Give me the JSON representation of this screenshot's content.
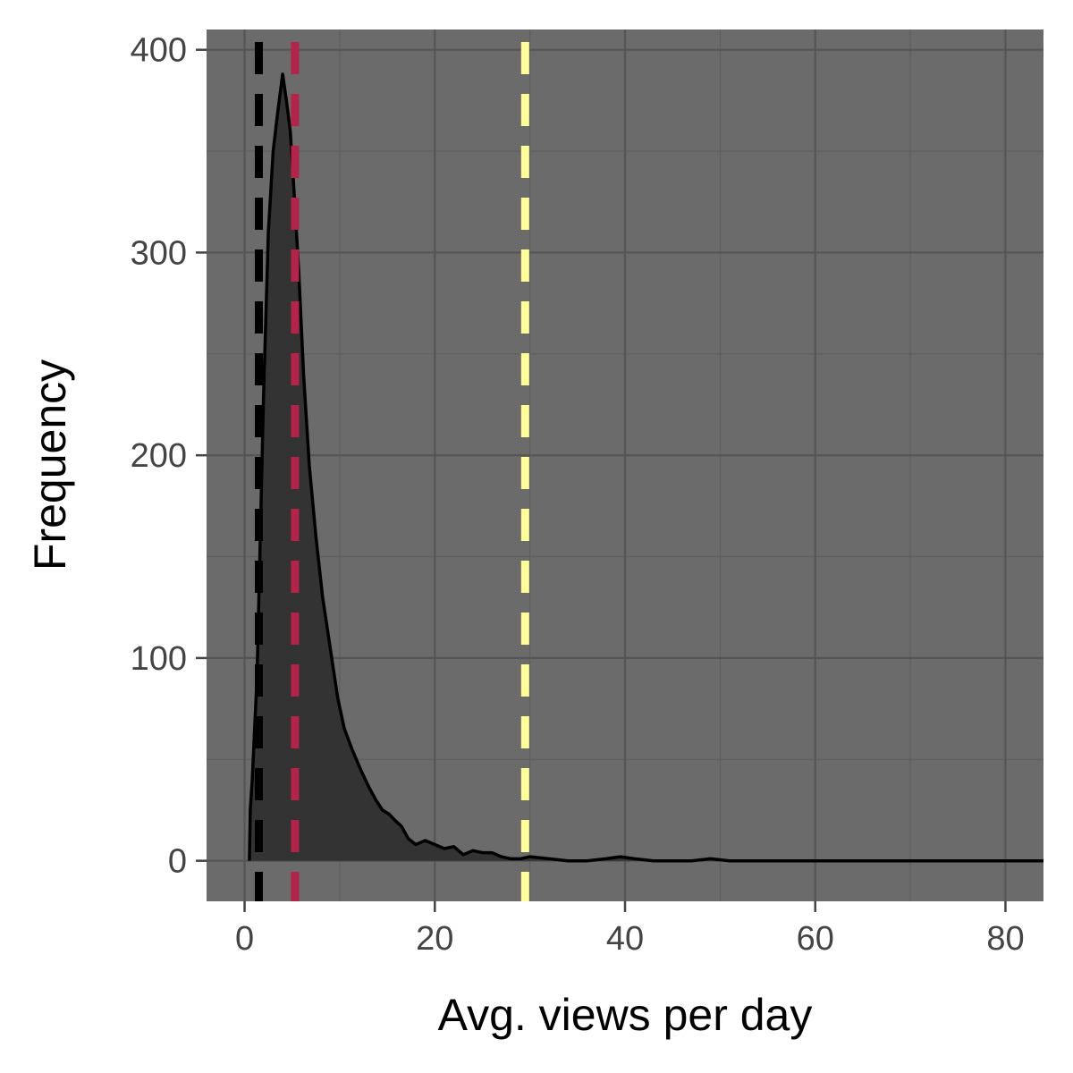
{
  "chart_data": {
    "type": "area",
    "xlabel": "Avg. views per day",
    "ylabel": "Frequency",
    "xlim": [
      -4,
      84
    ],
    "ylim": [
      -20,
      410
    ],
    "x_ticks": [
      0,
      20,
      40,
      60,
      80
    ],
    "y_ticks": [
      0,
      100,
      200,
      300,
      400
    ],
    "x_tick_labels": [
      "0",
      "20",
      "40",
      "60",
      "80"
    ],
    "y_tick_labels": [
      "0",
      "100",
      "200",
      "300",
      "400"
    ],
    "x_minor": [
      10,
      30,
      50,
      70
    ],
    "y_minor": [
      50,
      150,
      250,
      350
    ],
    "grid": true,
    "legend": "none",
    "colors": {
      "panel": "#6b6b6b",
      "grid_major": "#555555",
      "grid_minor": "#5e5e5e",
      "fill": "#333333",
      "outline": "#000000",
      "ticks": "#444444"
    },
    "series": [
      {
        "x": [
          0.5,
          0.6,
          0.8,
          1.0,
          1.3,
          1.6,
          2.0,
          2.5,
          3.0,
          3.5,
          4.0,
          4.4,
          4.8,
          5.2,
          5.7,
          6.2,
          6.8,
          7.5,
          8.2,
          9.0,
          9.8,
          10.5,
          11.3,
          12.2,
          13.0,
          13.8,
          14.5,
          15.2,
          15.8,
          16.5,
          17.2,
          18.0,
          19.0,
          20.0,
          21.0,
          22.0,
          23.0,
          24.0,
          25.0,
          26.0,
          27.0,
          28.0,
          29.0,
          30.0,
          32.0,
          34.0,
          36.0,
          38.0,
          39.5,
          41.0,
          43.0,
          45.0,
          47.0,
          49.0,
          51.0,
          53.0,
          55.0,
          57.0,
          59.0,
          61.0,
          63.0,
          66.0,
          68.0,
          72.0,
          76.0,
          80.0,
          84.0
        ],
        "y": [
          0,
          25,
          40,
          60,
          90,
          150,
          230,
          310,
          350,
          370,
          388,
          375,
          360,
          330,
          290,
          240,
          195,
          160,
          130,
          105,
          80,
          65,
          55,
          45,
          37,
          30,
          25,
          23,
          20,
          17,
          11,
          8,
          10,
          8,
          6,
          7,
          3,
          5,
          4,
          4,
          2,
          1,
          1,
          2,
          1,
          0,
          0,
          1,
          2,
          1,
          0,
          0,
          0,
          1,
          0,
          0,
          0,
          0,
          0,
          0,
          0,
          0,
          0,
          0,
          0,
          0,
          0
        ]
      }
    ],
    "vlines": [
      {
        "x": 1.5,
        "color": "#000000"
      },
      {
        "x": 5.3,
        "color": "#b5234a"
      },
      {
        "x": 29.5,
        "color": "#ffff99"
      }
    ]
  }
}
